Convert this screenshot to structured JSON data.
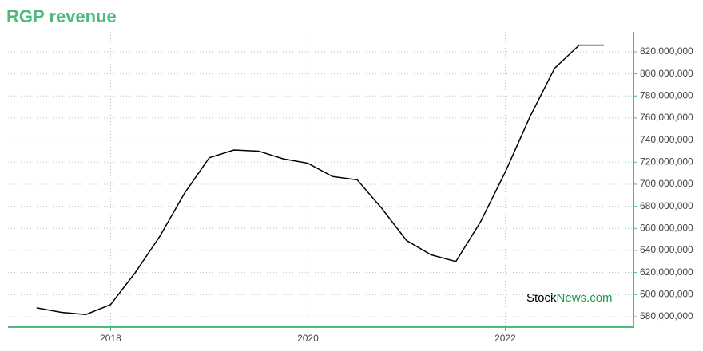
{
  "chart_data": {
    "type": "line",
    "title": "RGP revenue",
    "x": [
      2017.25,
      2017.5,
      2017.75,
      2018.0,
      2018.25,
      2018.5,
      2018.75,
      2019.0,
      2019.25,
      2019.5,
      2019.75,
      2020.0,
      2020.25,
      2020.5,
      2020.75,
      2021.0,
      2021.25,
      2021.5,
      2021.75,
      2022.0,
      2022.25,
      2022.5,
      2022.75,
      2023.0
    ],
    "series": [
      {
        "name": "RGP revenue",
        "color": "#000000",
        "values": [
          588000000,
          584000000,
          582000000,
          591000000,
          620000000,
          653000000,
          692000000,
          724000000,
          731000000,
          730000000,
          723000000,
          719000000,
          707000000,
          704000000,
          678000000,
          649000000,
          636000000,
          630000000,
          666000000,
          711000000,
          761000000,
          805000000,
          826000000,
          826000000
        ]
      }
    ],
    "xlim": [
      2016.96,
      2023.3
    ],
    "xticks": [
      2018,
      2020,
      2022
    ],
    "ylim": [
      570600000,
      838000000
    ],
    "yticks": [
      {
        "value": 580000000,
        "label": "580,000,000"
      },
      {
        "value": 600000000,
        "label": "600,000,000"
      },
      {
        "value": 620000000,
        "label": "620,000,000"
      },
      {
        "value": 640000000,
        "label": "640,000,000"
      },
      {
        "value": 660000000,
        "label": "660,000,000"
      },
      {
        "value": 680000000,
        "label": "680,000,000"
      },
      {
        "value": 700000000,
        "label": "700,000,000"
      },
      {
        "value": 720000000,
        "label": "720,000,000"
      },
      {
        "value": 740000000,
        "label": "740,000,000"
      },
      {
        "value": 760000000,
        "label": "760,000,000"
      },
      {
        "value": 780000000,
        "label": "780,000,000"
      },
      {
        "value": 800000000,
        "label": "800,000,000"
      },
      {
        "value": 820000000,
        "label": "820,000,000"
      }
    ],
    "grid": true,
    "axis_color": "#4cbb7a",
    "watermark": [
      "Stock",
      "News.com"
    ]
  }
}
